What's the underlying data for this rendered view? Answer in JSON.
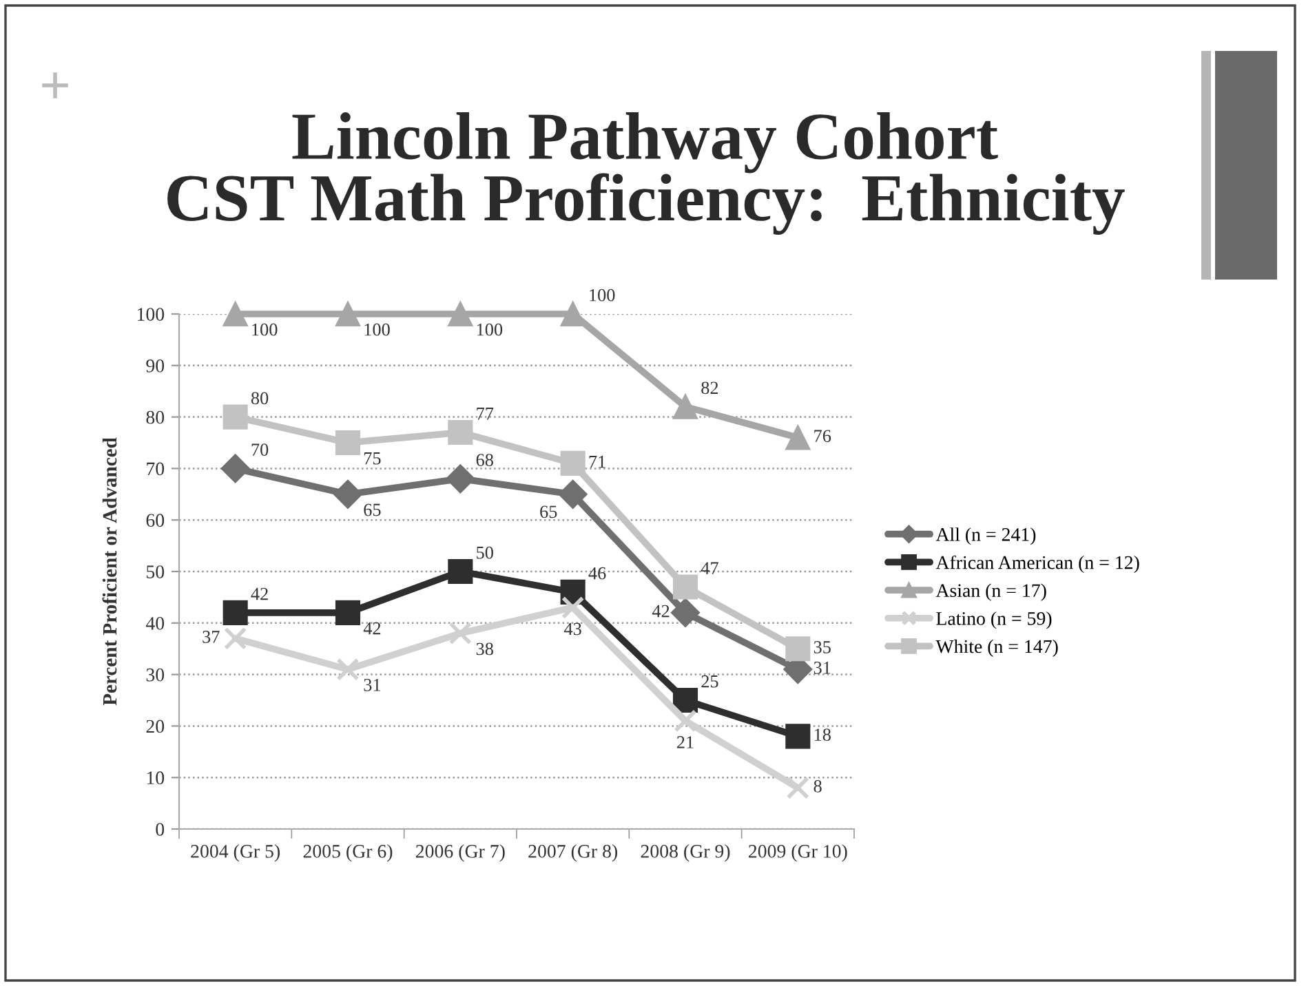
{
  "chart_data": {
    "type": "line",
    "title": "Lincoln Pathway Cohort\nCST Math Proficiency:  Ethnicity",
    "ylabel": "Percent Proficient or Advanced",
    "categories": [
      "2004 (Gr 5)",
      "2005 (Gr 6)",
      "2006 (Gr 7)",
      "2007 (Gr 8)",
      "2008 (Gr 9)",
      "2009 (Gr 10)"
    ],
    "ylim": [
      0,
      100
    ],
    "yticks": [
      0,
      10,
      20,
      30,
      40,
      50,
      60,
      70,
      80,
      90,
      100
    ],
    "grid": "y",
    "legend": "right",
    "data_labels": true,
    "line_style": "solid",
    "series": [
      {
        "name": "All (n = 241)",
        "color": "#6f6f6f",
        "marker": "diamond",
        "values": [
          70,
          65,
          68,
          65,
          42,
          31
        ]
      },
      {
        "name": "African American (n = 12)",
        "color": "#2e2e2e",
        "marker": "square",
        "values": [
          42,
          42,
          50,
          46,
          25,
          18
        ]
      },
      {
        "name": "Asian (n = 17)",
        "color": "#a6a6a6",
        "marker": "triangle",
        "values": [
          100,
          100,
          100,
          100,
          82,
          76
        ]
      },
      {
        "name": "Latino (n = 59)",
        "color": "#d0d0d0",
        "marker": "cross",
        "values": [
          37,
          31,
          38,
          43,
          21,
          8
        ]
      },
      {
        "name": "White (n = 147)",
        "color": "#c2c2c2",
        "marker": "square",
        "values": [
          80,
          75,
          77,
          71,
          47,
          35
        ]
      }
    ]
  }
}
